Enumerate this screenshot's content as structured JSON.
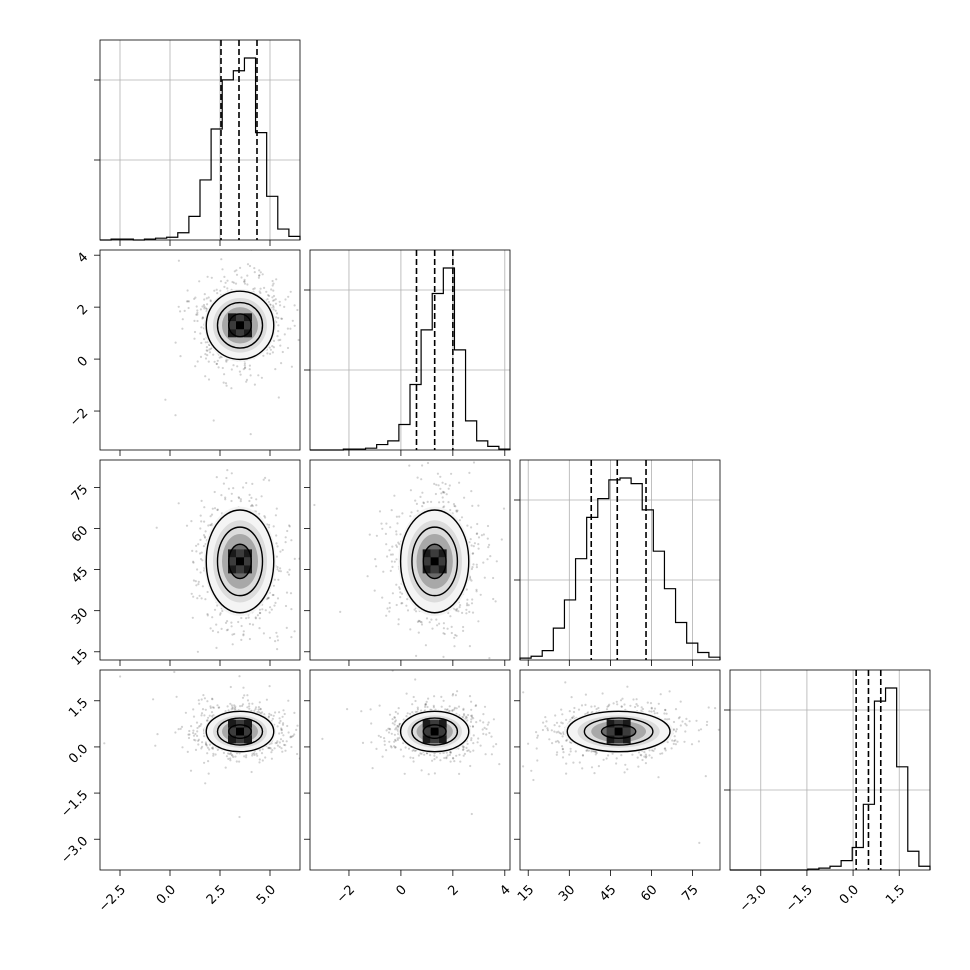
{
  "chart_data": {
    "type": "corner",
    "n_params": 4,
    "grid": true,
    "params": [
      {
        "range": [
          -3.5,
          6.5
        ],
        "ticks": [
          -2.5,
          0.0,
          2.5,
          5.0
        ],
        "tick_labels": [
          "−2.5",
          "0.0",
          "2.5",
          "5.0"
        ],
        "quantiles": [
          2.55,
          3.45,
          4.35
        ],
        "hist": [
          0.0,
          0.005,
          0.005,
          0.0,
          0.005,
          0.01,
          0.015,
          0.04,
          0.13,
          0.33,
          0.61,
          0.88,
          0.93,
          1.0,
          0.59,
          0.24,
          0.06,
          0.02
        ]
      },
      {
        "range": [
          -3.5,
          4.2
        ],
        "ticks": [
          -2,
          0,
          2,
          4
        ],
        "tick_labels": [
          "−2",
          "0",
          "2",
          "4"
        ],
        "quantiles": [
          0.6,
          1.3,
          2.0
        ],
        "hist": [
          0.0,
          0.0,
          0.0,
          0.005,
          0.005,
          0.01,
          0.03,
          0.05,
          0.14,
          0.36,
          0.66,
          0.86,
          1.0,
          0.55,
          0.16,
          0.05,
          0.02,
          0.005
        ]
      },
      {
        "range": [
          12,
          85
        ],
        "ticks": [
          15,
          30,
          45,
          60,
          75
        ],
        "tick_labels": [
          "15",
          "30",
          "45",
          "60",
          "75"
        ],
        "quantiles": [
          38,
          47.5,
          58
        ],
        "hist": [
          0.01,
          0.02,
          0.05,
          0.17,
          0.32,
          0.54,
          0.76,
          0.86,
          0.96,
          0.97,
          0.94,
          0.8,
          0.58,
          0.38,
          0.2,
          0.09,
          0.04,
          0.015
        ]
      },
      {
        "range": [
          -4.0,
          2.5
        ],
        "ticks": [
          -3.0,
          -1.5,
          0.0,
          1.5
        ],
        "tick_labels": [
          "−3.0",
          "−1.5",
          "0.0",
          "1.5"
        ],
        "quantiles": [
          0.1,
          0.5,
          0.9
        ],
        "hist": [
          0.0,
          0.0,
          0.0,
          0.0,
          0.0,
          0.0,
          0.0,
          0.005,
          0.01,
          0.02,
          0.05,
          0.12,
          0.35,
          0.9,
          0.97,
          0.55,
          0.1,
          0.02
        ]
      }
    ],
    "pairs": [
      {
        "row": 1,
        "col": 0,
        "mean": [
          3.5,
          1.3
        ],
        "sd": [
          0.9,
          0.7
        ],
        "contours": [
          0.5,
          1.0,
          1.5
        ]
      },
      {
        "row": 2,
        "col": 0,
        "mean": [
          3.5,
          48
        ],
        "sd": [
          0.9,
          10
        ],
        "contours": [
          0.5,
          1.0,
          1.5
        ]
      },
      {
        "row": 2,
        "col": 1,
        "mean": [
          1.3,
          48
        ],
        "sd": [
          0.7,
          10
        ],
        "contours": [
          0.5,
          1.0,
          1.5
        ]
      },
      {
        "row": 3,
        "col": 0,
        "mean": [
          3.5,
          0.5
        ],
        "sd": [
          0.9,
          0.35
        ],
        "contours": [
          0.5,
          1.0,
          1.5
        ]
      },
      {
        "row": 3,
        "col": 1,
        "mean": [
          1.3,
          0.5
        ],
        "sd": [
          0.7,
          0.35
        ],
        "contours": [
          0.5,
          1.0,
          1.5
        ]
      },
      {
        "row": 3,
        "col": 2,
        "mean": [
          48,
          0.5
        ],
        "sd": [
          10,
          0.35
        ],
        "contours": [
          0.5,
          1.0,
          1.5
        ]
      }
    ]
  }
}
